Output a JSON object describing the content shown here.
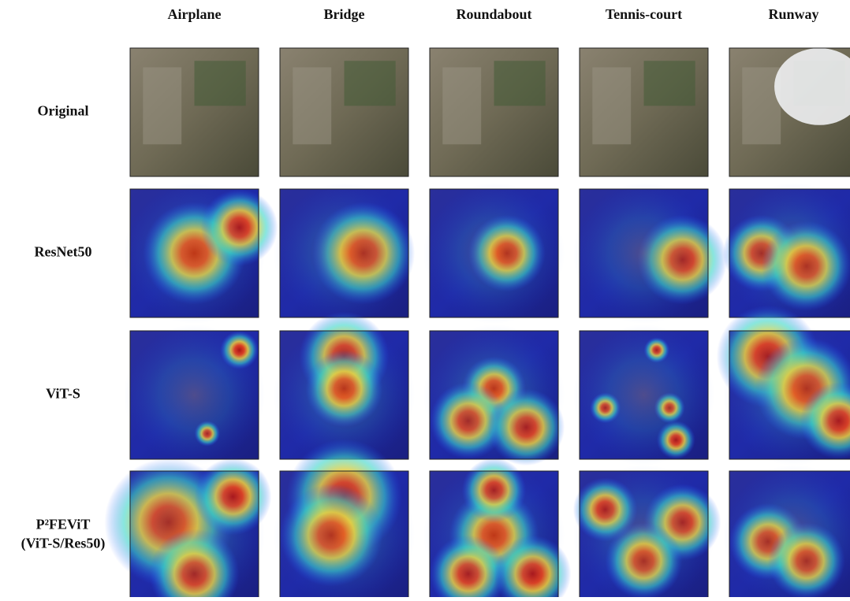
{
  "columns": [
    "Airplane",
    "Bridge",
    "Roundabout",
    "Tennis-court",
    "Runway"
  ],
  "rows": [
    {
      "label": [
        "Original"
      ]
    },
    {
      "label": [
        "ResNet50"
      ]
    },
    {
      "label": [
        "ViT-S"
      ]
    },
    {
      "label": [
        "P²FEViT",
        "(ViT-S/Res50)"
      ]
    }
  ]
}
